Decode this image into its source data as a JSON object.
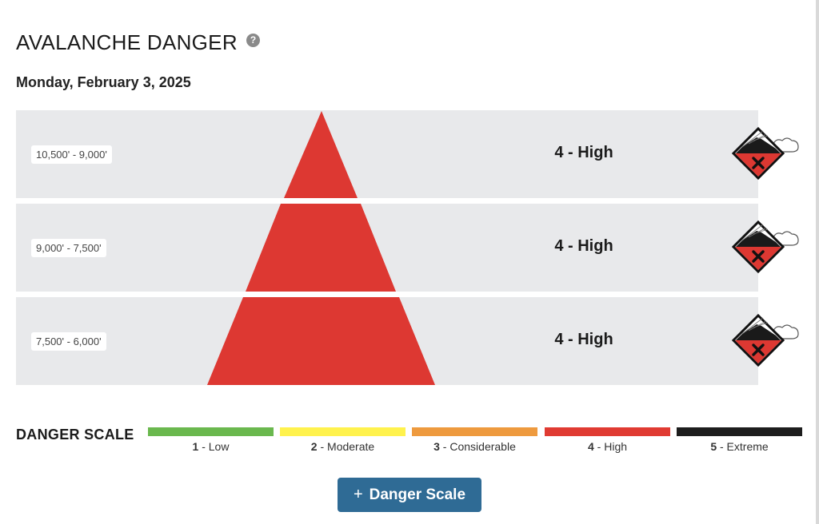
{
  "header": {
    "title": "AVALANCHE DANGER",
    "help_icon": "question-circle-icon",
    "date": "Monday, February 3, 2025"
  },
  "bands": [
    {
      "elevation": "10,500' - 9,000'",
      "rating_text": "4 - High",
      "rating_level": 4,
      "problem_icon": "avalanche-problem-icon"
    },
    {
      "elevation": "9,000' - 7,500'",
      "rating_text": "4 - High",
      "rating_level": 4,
      "problem_icon": "avalanche-problem-icon"
    },
    {
      "elevation": "7,500' - 6,000'",
      "rating_text": "4 - High",
      "rating_level": 4,
      "problem_icon": "avalanche-problem-icon"
    }
  ],
  "danger_scale": {
    "title": "DANGER SCALE",
    "levels": [
      {
        "num": "1",
        "label": " - Low",
        "color": "#6ab84e"
      },
      {
        "num": "2",
        "label": " - Moderate",
        "color": "#fff24d"
      },
      {
        "num": "3",
        "label": " - Considerable",
        "color": "#ee9a3e"
      },
      {
        "num": "4",
        "label": " - High",
        "color": "#e03b32"
      },
      {
        "num": "5",
        "label": " - Extreme",
        "color": "#1d1d1d"
      }
    ]
  },
  "button": {
    "label": "Danger Scale",
    "icon": "plus-icon"
  },
  "colors": {
    "high": "#dd3832",
    "band_bg": "#e8e9eb",
    "button": "#2f6b95"
  }
}
